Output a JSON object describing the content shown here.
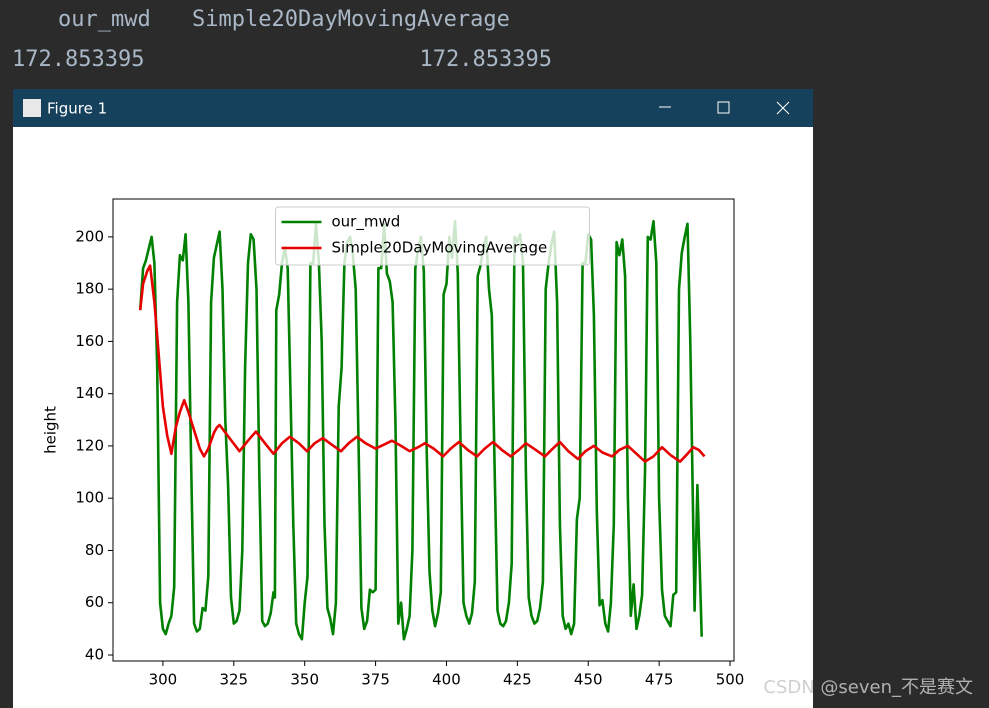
{
  "console": {
    "header": [
      "our_mwd",
      "Simple20DayMovingAverage"
    ],
    "row": [
      "172.853395",
      "172.853395"
    ]
  },
  "window": {
    "title": "Figure 1"
  },
  "watermark": "CSDN @seven_不是赛文",
  "chart_data": {
    "type": "line",
    "ylabel": "height",
    "legend": "upper center",
    "xlim": [
      282.4,
      501.4
    ],
    "ylim": [
      37.7,
      214.5
    ],
    "xticks": [
      300,
      325,
      350,
      375,
      400,
      425,
      450,
      475,
      500
    ],
    "yticks": [
      40,
      60,
      80,
      100,
      120,
      140,
      160,
      180,
      200
    ],
    "series": [
      {
        "name": "our_mwd",
        "color": "#008000",
        "x": [
          292,
          293,
          294,
          296,
          297,
          298,
          299,
          300,
          301,
          302,
          303,
          304,
          305,
          306,
          307,
          308,
          309,
          310,
          311,
          312,
          313,
          314,
          315,
          316,
          317,
          318,
          320,
          321,
          322,
          323,
          324,
          325,
          326,
          327,
          328,
          329,
          330,
          331,
          332,
          333,
          334,
          335,
          336,
          337,
          338,
          339,
          339.5,
          340,
          341,
          342,
          343,
          344,
          345,
          346,
          347,
          348,
          349,
          350,
          351,
          352,
          353,
          354,
          355,
          356,
          357,
          358,
          359,
          360,
          361,
          362,
          363,
          364,
          365,
          366,
          367,
          368,
          369,
          370,
          371,
          372,
          373,
          374,
          375,
          376,
          377,
          378,
          379,
          380,
          381,
          382,
          383,
          384,
          385,
          386,
          387,
          388,
          389,
          390,
          391,
          392,
          393,
          394,
          395,
          396,
          397,
          398,
          399,
          400,
          401,
          402,
          403,
          404,
          405,
          406,
          407,
          408,
          409,
          410,
          411,
          412,
          413,
          414,
          415,
          416,
          417,
          418,
          419,
          420,
          421,
          422,
          423,
          424,
          425,
          426,
          427,
          428,
          429,
          430,
          431,
          432,
          433,
          434,
          435,
          436,
          437,
          438,
          439,
          440,
          441,
          442,
          443,
          444,
          445,
          446,
          447,
          448,
          449,
          450,
          451,
          452,
          453,
          454,
          455,
          456,
          457,
          458,
          459,
          460,
          461,
          462,
          463,
          464,
          465,
          466,
          467,
          468,
          469,
          470,
          471,
          472,
          473,
          474,
          475,
          476,
          477,
          478,
          479,
          480,
          481,
          482,
          483,
          484,
          485,
          486,
          487.5,
          488.5,
          490
        ],
        "values": [
          172,
          188,
          191,
          200,
          190,
          150,
          60,
          50,
          48,
          52,
          55,
          66,
          175,
          193,
          191,
          201,
          175,
          110,
          52,
          49,
          50,
          58,
          57,
          70,
          175,
          192,
          202,
          180,
          130,
          105,
          62,
          52,
          53,
          57,
          80,
          150,
          190,
          201,
          199,
          180,
          110,
          53,
          51,
          52,
          56,
          64,
          62,
          172,
          178,
          190,
          196,
          188,
          140,
          90,
          52,
          48,
          46,
          60,
          70,
          190,
          190,
          205,
          190,
          160,
          90,
          58,
          54,
          48,
          60,
          135,
          150,
          190,
          198,
          200,
          193,
          180,
          120,
          58,
          50,
          53,
          65,
          64,
          65,
          188,
          188,
          205,
          186,
          183,
          175,
          130,
          52,
          60,
          46,
          50,
          55,
          80,
          188,
          195,
          200,
          187,
          120,
          72,
          57,
          51,
          56,
          64,
          178,
          182,
          200,
          192,
          206,
          186,
          120,
          60,
          55,
          52,
          56,
          68,
          185,
          189,
          196,
          200,
          180,
          170,
          110,
          57,
          52,
          51,
          53,
          60,
          75,
          200,
          198,
          201,
          190,
          110,
          62,
          55,
          52,
          53,
          58,
          68,
          180,
          190,
          197,
          202,
          175,
          90,
          55,
          50,
          52,
          48,
          52,
          92,
          100,
          190,
          190,
          201,
          199,
          170,
          95,
          59,
          61,
          52,
          49,
          60,
          90,
          198,
          193,
          199,
          185,
          100,
          55,
          67,
          50,
          55,
          63,
          110,
          200,
          199,
          206,
          190,
          100,
          65,
          55,
          53,
          51,
          63,
          64,
          180,
          194,
          200,
          205,
          160,
          57,
          105,
          47
        ]
      },
      {
        "name": "Simple20DayMovingAverage",
        "color": "#e60000",
        "x": [
          292,
          293,
          294.5,
          295.5,
          297,
          298.5,
          300,
          301.5,
          303,
          304.5,
          306,
          307.5,
          309,
          311,
          313,
          314.5,
          316,
          318,
          319,
          320,
          323.5,
          327,
          330,
          332.8,
          336,
          339,
          342,
          344.8,
          348,
          350.8,
          353.5,
          356.4,
          359.5,
          362.8,
          365.5,
          368.4,
          371.5,
          375,
          378,
          380.8,
          384,
          387,
          390,
          392.4,
          395.5,
          398.8,
          401.5,
          404.4,
          407.5,
          410.8,
          413.5,
          416.4,
          419.5,
          422.7,
          425.5,
          428,
          431.5,
          434.7,
          437.5,
          440,
          443,
          446.4,
          449,
          452,
          455,
          458.4,
          461,
          464,
          467,
          470,
          473,
          476,
          479,
          482.4,
          485,
          487,
          489,
          491
        ],
        "values": [
          172,
          182,
          187,
          189,
          175,
          155,
          135,
          124,
          117,
          127,
          133,
          137.5,
          133,
          126,
          119,
          116,
          119,
          125,
          127,
          128,
          123,
          118,
          122,
          125.5,
          121,
          117,
          121,
          123.5,
          121,
          118,
          121,
          123,
          120.5,
          118,
          121,
          123.5,
          121,
          119,
          120.5,
          122,
          120,
          118,
          119.5,
          121,
          119,
          116,
          119,
          121.5,
          118.5,
          116,
          119,
          121.5,
          118.5,
          116,
          118.5,
          121,
          118.5,
          116,
          119,
          121.5,
          118,
          115,
          118,
          120,
          117.5,
          116,
          118.5,
          120,
          117,
          114,
          116,
          119.5,
          116.5,
          114,
          117,
          119.5,
          118.5,
          116
        ]
      }
    ]
  }
}
